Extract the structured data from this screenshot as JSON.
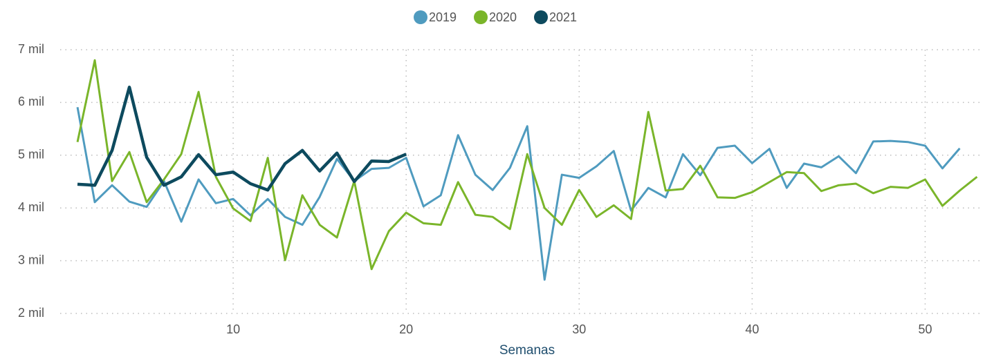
{
  "chart_data": {
    "type": "line",
    "x": [
      1,
      2,
      3,
      4,
      5,
      6,
      7,
      8,
      9,
      10,
      11,
      12,
      13,
      14,
      15,
      16,
      17,
      18,
      19,
      20,
      21,
      22,
      23,
      24,
      25,
      26,
      27,
      28,
      29,
      30,
      31,
      32,
      33,
      34,
      35,
      36,
      37,
      38,
      39,
      40,
      41,
      42,
      43,
      44,
      45,
      46,
      47,
      48,
      49,
      50,
      51,
      52,
      53
    ],
    "xlim": [
      0,
      53.3
    ],
    "xticks": [
      10,
      20,
      30,
      40,
      50
    ],
    "ylim": [
      2000,
      7000
    ],
    "yticks": [
      {
        "value": 2000,
        "label": "2 mil"
      },
      {
        "value": 3000,
        "label": "3 mil"
      },
      {
        "value": 4000,
        "label": "4 mil"
      },
      {
        "value": 5000,
        "label": "5 mil"
      },
      {
        "value": 6000,
        "label": "6 mil"
      },
      {
        "value": 7000,
        "label": "7 mil"
      }
    ],
    "x_label": "Semanas",
    "grid": true,
    "legend": "top",
    "series": [
      {
        "name": "2019",
        "color": "#4f9bbf",
        "values": [
          5910,
          4110,
          4430,
          4120,
          4020,
          4510,
          3740,
          4540,
          4090,
          4170,
          3860,
          4170,
          3830,
          3680,
          4210,
          4930,
          4510,
          4740,
          4760,
          4950,
          4030,
          4240,
          5380,
          4630,
          4340,
          4760,
          5550,
          2640,
          4630,
          4570,
          4790,
          5080,
          3950,
          4380,
          4200,
          5020,
          4620,
          5140,
          5180,
          4850,
          5120,
          4380,
          4840,
          4770,
          4980,
          4660,
          5260,
          5270,
          5250,
          5180,
          4750,
          5130,
          null
        ]
      },
      {
        "name": "2020",
        "color": "#7ab52a",
        "values": [
          5250,
          6800,
          4510,
          5060,
          4110,
          4540,
          5020,
          6200,
          4590,
          3990,
          3750,
          4950,
          3010,
          4240,
          3680,
          3440,
          4510,
          2840,
          3560,
          3910,
          3710,
          3680,
          4490,
          3870,
          3830,
          3600,
          5020,
          4000,
          3680,
          4340,
          3830,
          4050,
          3790,
          5820,
          4330,
          4360,
          4800,
          4200,
          4190,
          4300,
          4490,
          4680,
          4660,
          4320,
          4430,
          4460,
          4280,
          4400,
          4380,
          4540,
          4040,
          4330,
          4590
        ]
      },
      {
        "name": "2021",
        "color": "#0d4a5e",
        "values": [
          4450,
          4430,
          5090,
          6290,
          4960,
          4430,
          4590,
          5010,
          4630,
          4680,
          4460,
          4340,
          4840,
          5090,
          4700,
          5040,
          4500,
          4890,
          4880,
          5020,
          null,
          null,
          null,
          null,
          null,
          null,
          null,
          null,
          null,
          null,
          null,
          null,
          null,
          null,
          null,
          null,
          null,
          null,
          null,
          null,
          null,
          null,
          null,
          null,
          null,
          null,
          null,
          null,
          null,
          null,
          null,
          null,
          null
        ]
      }
    ]
  }
}
